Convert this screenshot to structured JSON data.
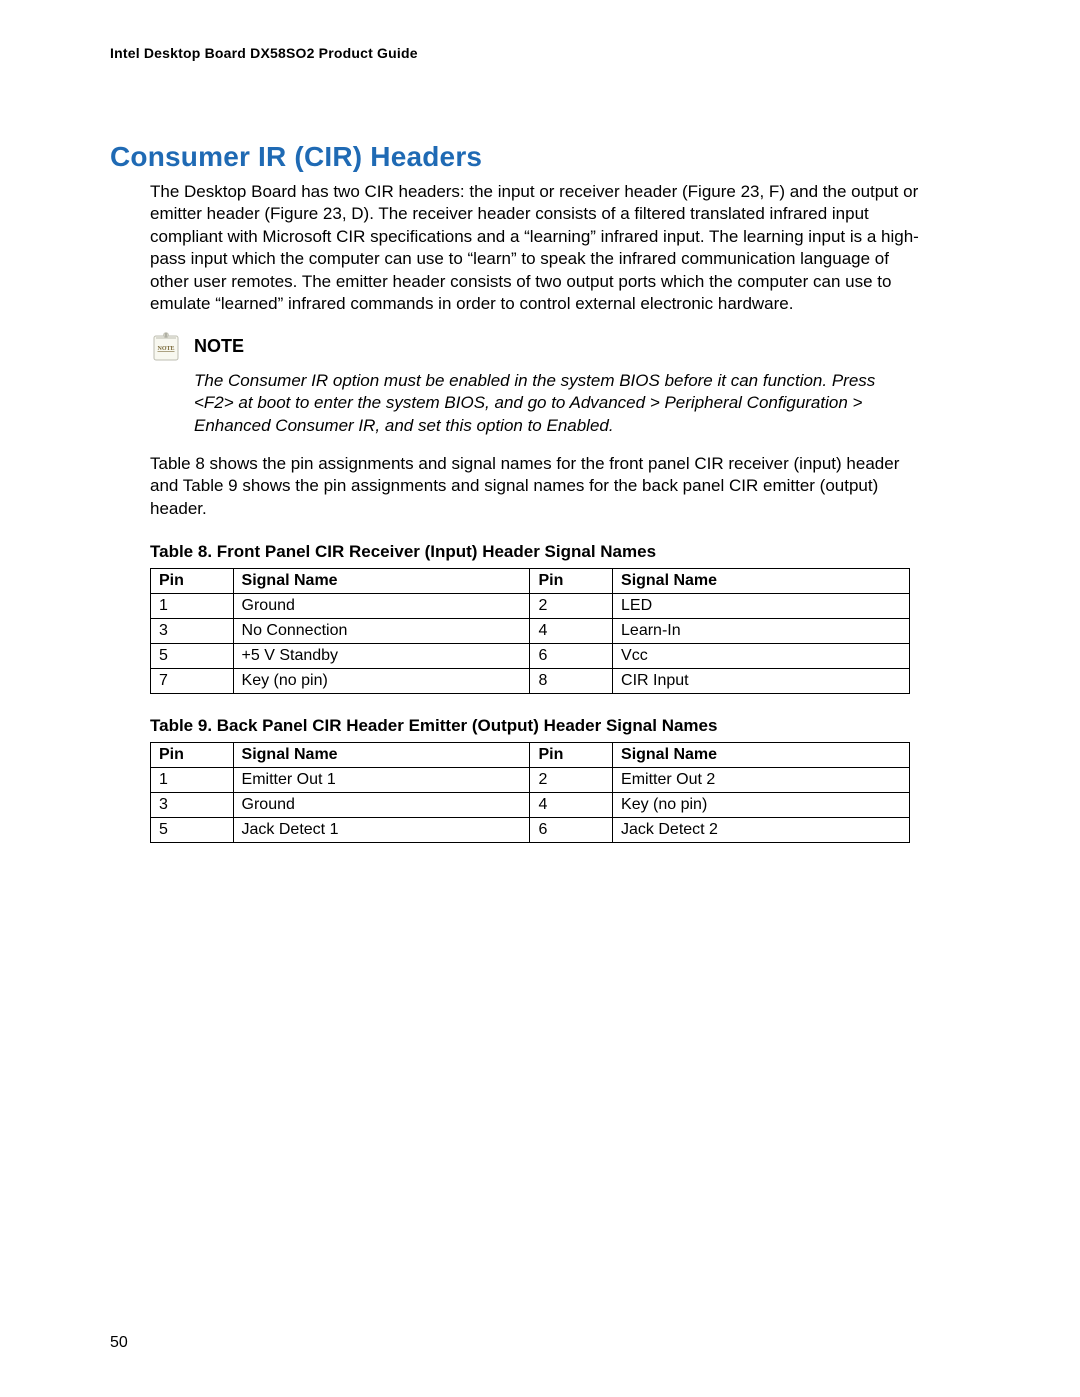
{
  "header": "Intel Desktop Board DX58SO2 Product Guide",
  "section_title": "Consumer IR (CIR) Headers",
  "para1": "The Desktop Board has two CIR headers: the input or receiver header (Figure 23, F) and the output or emitter header (Figure 23, D).  The receiver header consists of a filtered translated infrared input compliant with Microsoft CIR specifications and a “learning” infrared input.  The learning input is a high-pass input which the computer can use to “learn” to speak the infrared communication language of other user remotes.  The emitter header consists of two output ports which the computer can use to emulate “learned” infrared commands in order to control external electronic hardware.",
  "note_label": "NOTE",
  "note_text": "The Consumer IR option must be enabled in the system BIOS before it can function.  Press <F2> at boot to enter the system BIOS, and go to Advanced > Peripheral Configuration > Enhanced Consumer IR, and set this option to Enabled.",
  "para2": "Table 8 shows the pin assignments and signal names for the front panel CIR receiver (input) header and Table 9 shows the pin assignments and signal names for the back panel CIR emitter (output) header.",
  "table8": {
    "caption": "Table 8.  Front Panel CIR Receiver (Input) Header Signal Names",
    "headers": [
      "Pin",
      "Signal Name",
      "Pin",
      "Signal Name"
    ],
    "rows": [
      [
        "1",
        "Ground",
        "2",
        "LED"
      ],
      [
        "3",
        "No Connection",
        "4",
        "Learn-In"
      ],
      [
        "5",
        "+5 V Standby",
        "6",
        "Vcc"
      ],
      [
        "7",
        "Key (no pin)",
        "8",
        "CIR Input"
      ]
    ]
  },
  "table9": {
    "caption": "Table 9.  Back Panel CIR Header Emitter (Output) Header Signal Names",
    "headers": [
      "Pin",
      "Signal Name",
      "Pin",
      "Signal Name"
    ],
    "rows": [
      [
        "1",
        "Emitter Out 1",
        "2",
        "Emitter Out 2"
      ],
      [
        "3",
        "Ground",
        "4",
        "Key (no pin)"
      ],
      [
        "5",
        "Jack Detect 1",
        "6",
        "Jack Detect 2"
      ]
    ]
  },
  "page_number": "50",
  "colors": {
    "title": "#1f6ab4",
    "text": "#000000",
    "background": "#ffffff",
    "border": "#000000",
    "icon_fill": "#f2f2e8",
    "icon_stroke": "#aaaaaa",
    "icon_text": "#7a6a3a"
  },
  "fonts": {
    "body_size": 17,
    "title_size": 28,
    "caption_size": 17,
    "table_size": 16,
    "header_size": 14
  }
}
